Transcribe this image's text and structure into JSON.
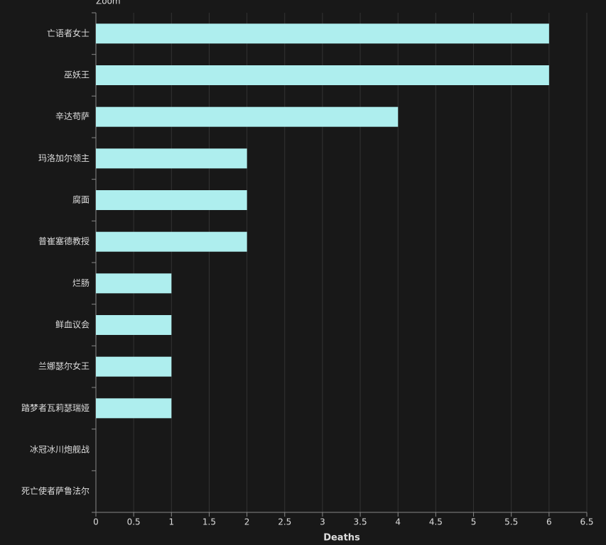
{
  "chart_data": {
    "type": "bar",
    "orientation": "horizontal",
    "annotation": "Zoom",
    "x_label": "Deaths",
    "categories": [
      "亡语者女士",
      "巫妖王",
      "辛达苟萨",
      "玛洛加尔领主",
      "腐面",
      "普崔塞德教授",
      "烂肠",
      "鲜血议会",
      "兰娜瑟尔女王",
      "踏梦者瓦莉瑟瑞娅",
      "冰冠冰川炮舰战",
      "死亡使者萨鲁法尔"
    ],
    "values": [
      6,
      6,
      4,
      2,
      2,
      2,
      1,
      1,
      1,
      1,
      0,
      0
    ],
    "color": "#aeeeee",
    "xlim": [
      0,
      6.5
    ],
    "xticks": [
      0,
      0.5,
      1,
      1.5,
      2,
      2.5,
      3,
      3.5,
      4,
      4.5,
      5,
      5.5,
      6,
      6.5
    ],
    "grid": true
  }
}
